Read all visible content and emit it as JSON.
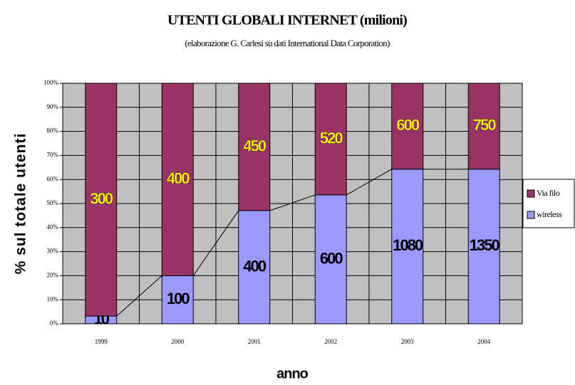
{
  "chart_data": {
    "type": "bar",
    "stacking": "percent",
    "title": "UTENTI GLOBALI INTERNET (milioni)",
    "subtitle": "(elaborazione G. Carlesi su dati International Data Corporation)",
    "x_label": "anno",
    "y_label": "% sul totale utenti",
    "categories": [
      "1999",
      "2000",
      "2001",
      "2002",
      "2003",
      "2004"
    ],
    "series": [
      {
        "name": "wireless",
        "color": "#9999ff",
        "label_color": "#000000",
        "values": [
          10,
          100,
          400,
          600,
          1080,
          1350
        ]
      },
      {
        "name": "Via filo",
        "color": "#993366",
        "label_color": "#ffff00",
        "values": [
          300,
          400,
          450,
          520,
          600,
          750
        ]
      }
    ],
    "ylim": [
      0,
      100
    ],
    "yticks": [
      {
        "value": 0,
        "label": "0%"
      },
      {
        "value": 10,
        "label": "10%"
      },
      {
        "value": 20,
        "label": "20%"
      },
      {
        "value": 30,
        "label": "30%"
      },
      {
        "value": 40,
        "label": "40%"
      },
      {
        "value": 50,
        "label": "50%"
      },
      {
        "value": 60,
        "label": "60%"
      },
      {
        "value": 70,
        "label": "70%"
      },
      {
        "value": 80,
        "label": "80%"
      },
      {
        "value": 90,
        "label": "90%"
      },
      {
        "value": 100,
        "label": "100%"
      }
    ],
    "grid": true,
    "series_lines": true,
    "legend": "right",
    "plot_background": "#c0c0c0"
  }
}
